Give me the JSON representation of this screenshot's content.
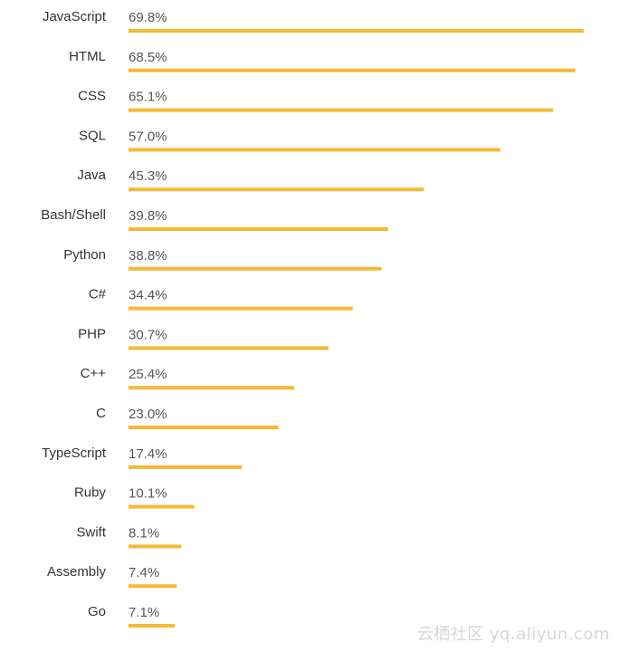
{
  "chart_data": {
    "type": "bar",
    "orientation": "horizontal",
    "categories": [
      "JavaScript",
      "HTML",
      "CSS",
      "SQL",
      "Java",
      "Bash/Shell",
      "Python",
      "C#",
      "PHP",
      "C++",
      "C",
      "TypeScript",
      "Ruby",
      "Swift",
      "Assembly",
      "Go"
    ],
    "values": [
      69.8,
      68.5,
      65.1,
      57.0,
      45.3,
      39.8,
      38.8,
      34.4,
      30.7,
      25.4,
      23.0,
      17.4,
      10.1,
      8.1,
      7.4,
      7.1
    ],
    "value_labels": [
      "69.8%",
      "68.5%",
      "65.1%",
      "57.0%",
      "45.3%",
      "39.8%",
      "38.8%",
      "34.4%",
      "30.7%",
      "25.4%",
      "23.0%",
      "17.4%",
      "10.1%",
      "8.1%",
      "7.4%",
      "7.1%"
    ],
    "unit": "%",
    "xlim": [
      0,
      69.8
    ],
    "grid": false,
    "bar_color": "#f5b935"
  },
  "watermark": "云栖社区 yq.aliyun.com"
}
